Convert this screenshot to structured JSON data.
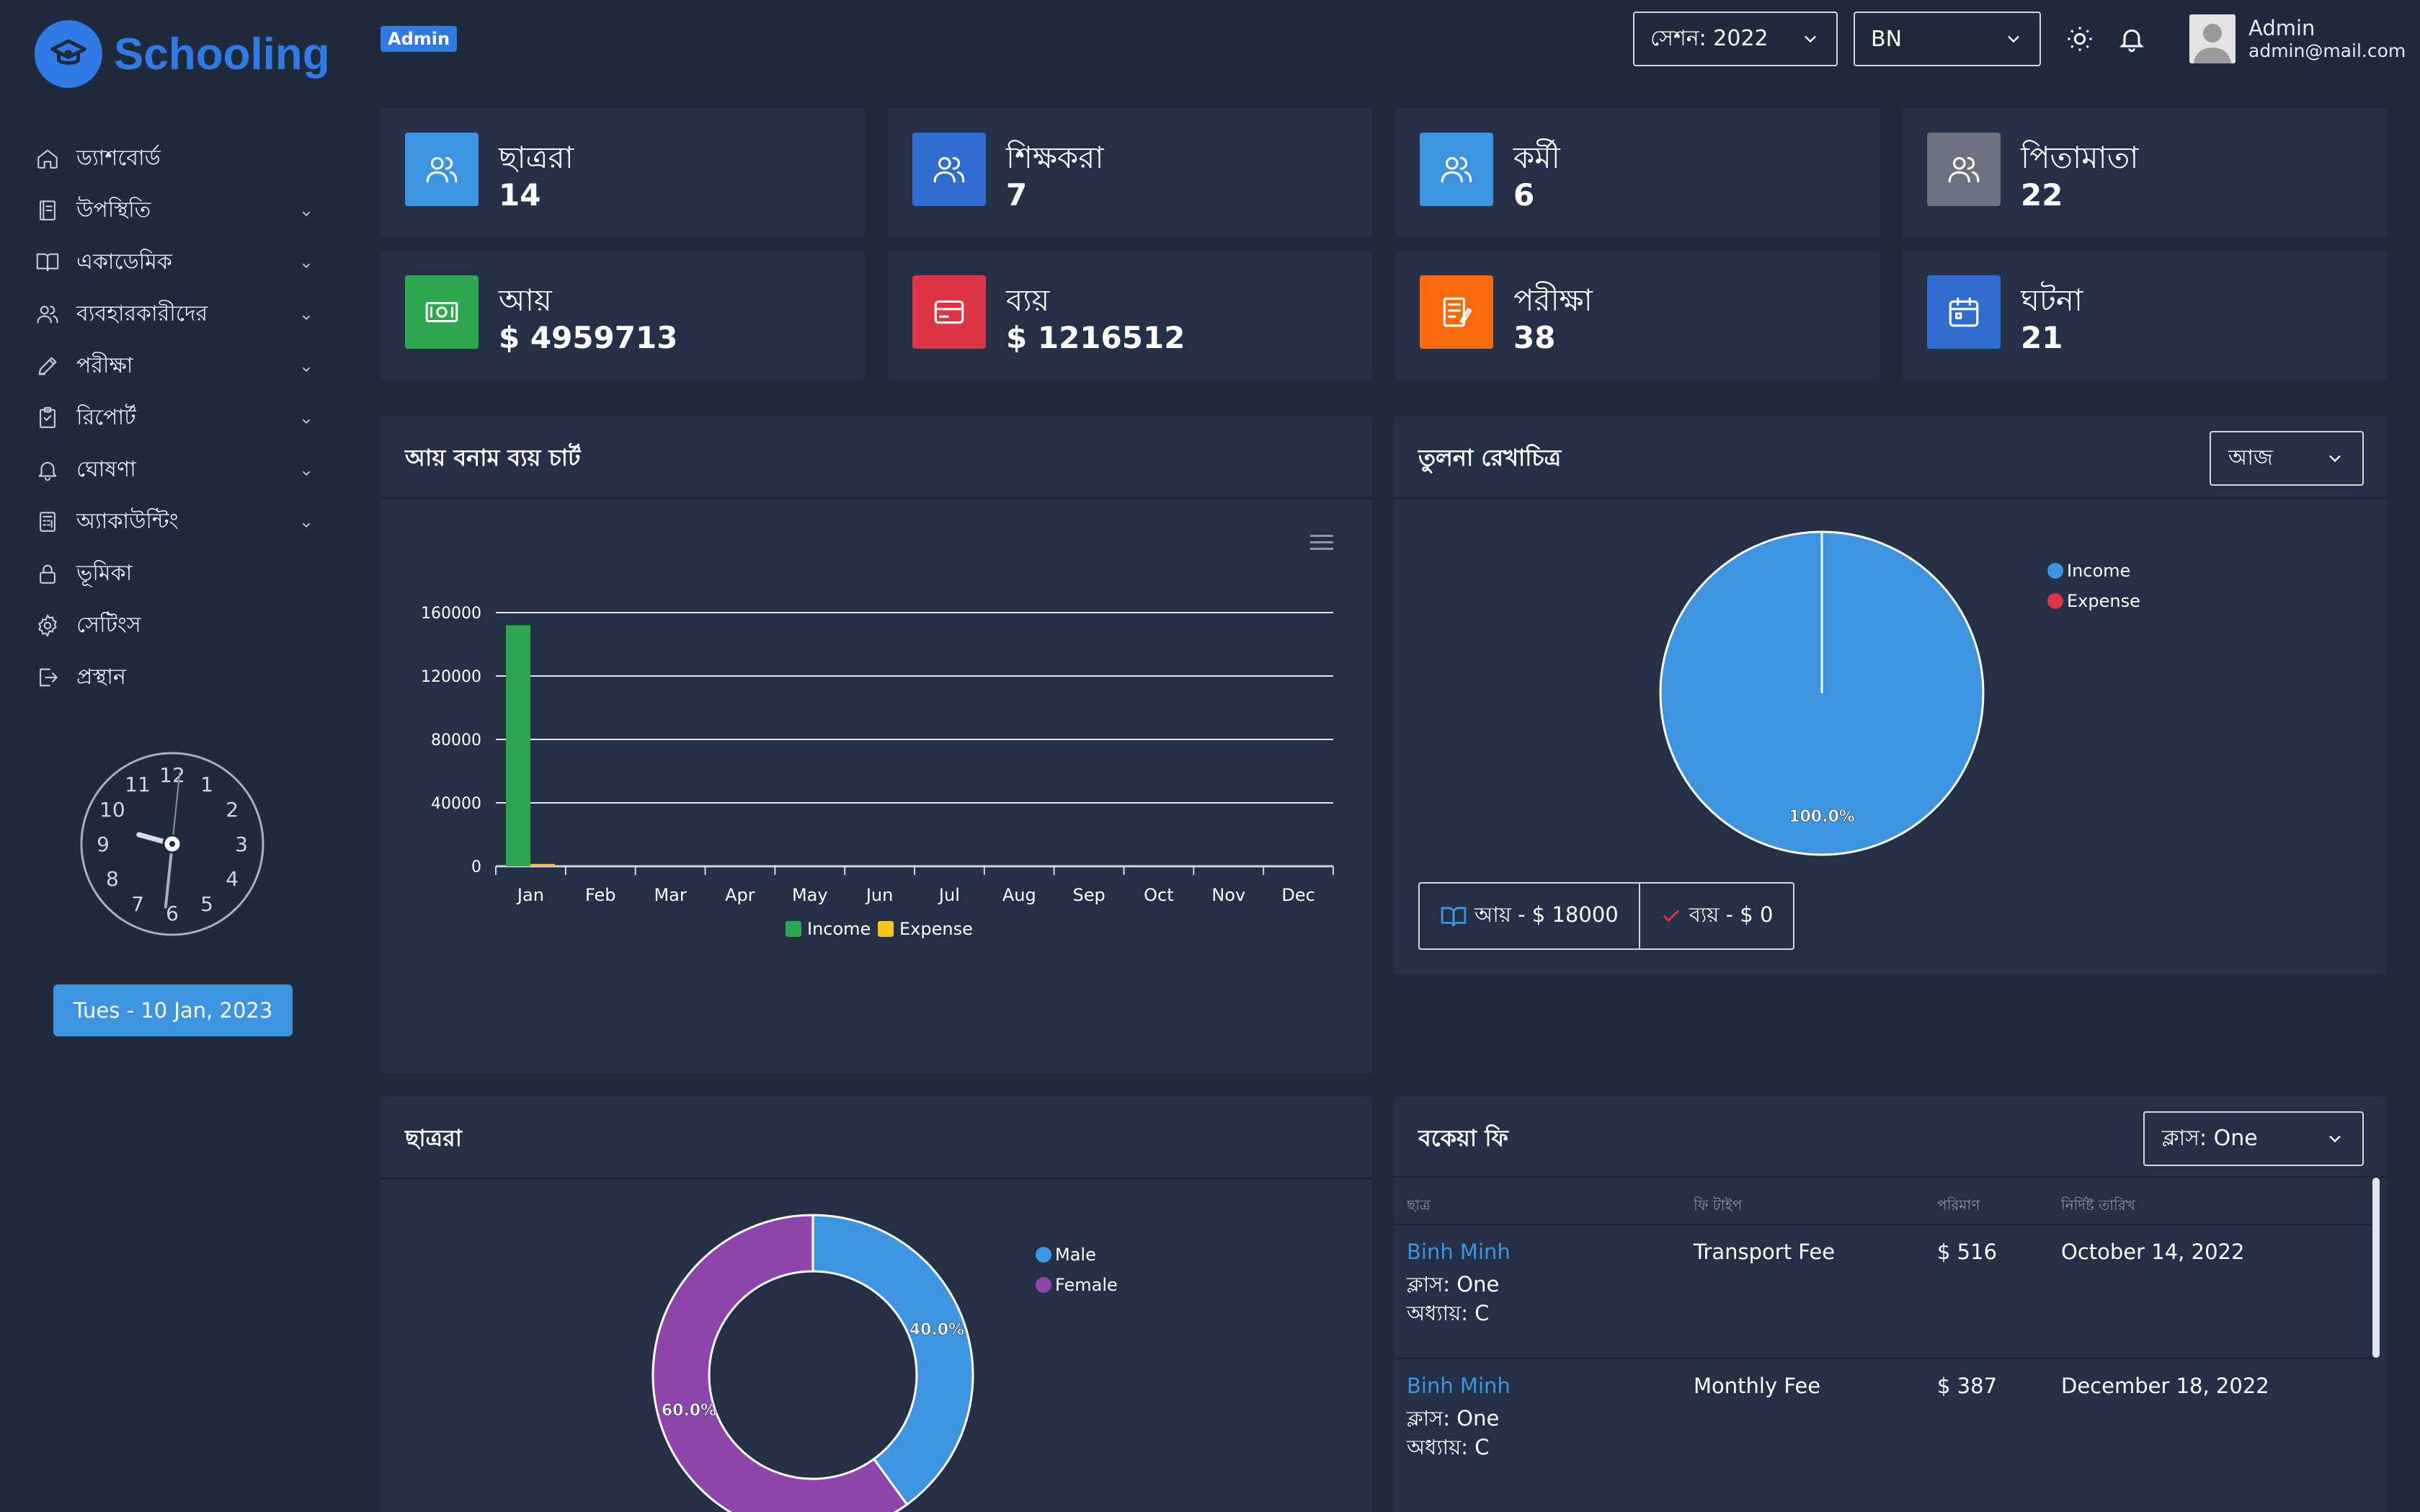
{
  "brand": {
    "name": "Schooling",
    "color": "#2f7ae5"
  },
  "topbar": {
    "role_badge": "Admin",
    "session_select": "সেশন: 2022",
    "language_select": "BN",
    "theme_icon": "sun-icon",
    "notification_icon": "bell-icon",
    "user": {
      "name": "Admin",
      "email": "admin@mail.com"
    }
  },
  "sidebar": {
    "items": [
      {
        "label": "ড্যাশবোর্ড",
        "icon": "home-icon",
        "has_children": false
      },
      {
        "label": "উপস্থিতি",
        "icon": "attendance-icon",
        "has_children": true
      },
      {
        "label": "একাডেমিক",
        "icon": "book-icon",
        "has_children": true
      },
      {
        "label": "ব্যবহারকারীদের",
        "icon": "users-icon",
        "has_children": true
      },
      {
        "label": "পরীক্ষা",
        "icon": "pencil-icon",
        "has_children": true
      },
      {
        "label": "রিপোর্ট",
        "icon": "report-icon",
        "has_children": true
      },
      {
        "label": "ঘোষণা",
        "icon": "bell-icon",
        "has_children": true
      },
      {
        "label": "অ্যাকাউন্টিং",
        "icon": "calculator-icon",
        "has_children": true
      },
      {
        "label": "ভূমিকা",
        "icon": "lock-icon",
        "has_children": false
      },
      {
        "label": "সেটিংস",
        "icon": "gear-icon",
        "has_children": false
      },
      {
        "label": "প্রস্থান",
        "icon": "logout-icon",
        "has_children": false
      }
    ],
    "clock": {
      "numbers": [
        "12",
        "1",
        "2",
        "3",
        "4",
        "5",
        "6",
        "7",
        "8",
        "9",
        "10",
        "11"
      ],
      "hour": 9,
      "minute": 31,
      "second": 1
    },
    "date_button": "Tues - 10 Jan, 2023"
  },
  "stats": [
    {
      "label": "ছাত্ররা",
      "value": "14",
      "icon": "users-icon",
      "color": "#3d95e2"
    },
    {
      "label": "শিক্ষকরা",
      "value": "7",
      "icon": "users-icon",
      "color": "#2f6ed0"
    },
    {
      "label": "কর্মী",
      "value": "6",
      "icon": "users-icon",
      "color": "#3d95e2"
    },
    {
      "label": "পিতামাতা",
      "value": "22",
      "icon": "users-icon",
      "color": "#6c737f"
    },
    {
      "label": "আয়",
      "value": "$ 4959713",
      "icon": "money-icon",
      "color": "#2ea84f"
    },
    {
      "label": "ব্যয়",
      "value": "$ 1216512",
      "icon": "card-icon",
      "color": "#dc3545"
    },
    {
      "label": "পরীক্ষা",
      "value": "38",
      "icon": "exam-icon",
      "color": "#f96a0c"
    },
    {
      "label": "ঘটনা",
      "value": "21",
      "icon": "calendar-icon",
      "color": "#2f6ed0"
    }
  ],
  "income_chart": {
    "title": "আয় বনাম ব্যয় চার্ট",
    "menu_icon": "hamburger-icon"
  },
  "comparison": {
    "title": "তুলনা রেখাচিত্র",
    "filter": "আজ",
    "income_summary": "আয় - $ 18000",
    "expense_summary": "ব্যয় - $ 0",
    "income_icon": "book-icon",
    "expense_icon": "check-icon"
  },
  "students_panel": {
    "title": "ছাত্ররা"
  },
  "fees": {
    "title": "বকেয়া ফি",
    "class_select": "ক্লাস: One",
    "headers": {
      "student": "ছাত্র",
      "fee_type": "ফি টাইপ",
      "amount": "পরিমাণ",
      "due_date": "নির্দিষ্ট তারিখ"
    },
    "rows": [
      {
        "name": "Binh Minh",
        "class": "ক্লাস: One",
        "section": "অধ্যায়: C",
        "fee_type": "Transport Fee",
        "amount": "$ 516",
        "due_date": "October 14, 2022"
      },
      {
        "name": "Binh Minh",
        "class": "ক্লাস: One",
        "section": "অধ্যায়: C",
        "fee_type": "Monthly Fee",
        "amount": "$ 387",
        "due_date": "December 18, 2022"
      }
    ]
  },
  "chart_data": [
    {
      "type": "bar",
      "categories": [
        "Jan",
        "Feb",
        "Mar",
        "Apr",
        "May",
        "Jun",
        "Jul",
        "Aug",
        "Sep",
        "Oct",
        "Nov",
        "Dec"
      ],
      "series": [
        {
          "name": "Income",
          "color": "#2ea84f",
          "values": [
            152000,
            0,
            0,
            0,
            0,
            0,
            0,
            0,
            0,
            0,
            0,
            0
          ]
        },
        {
          "name": "Expense",
          "color": "#f5c518",
          "values": [
            1500,
            0,
            0,
            0,
            0,
            0,
            0,
            0,
            0,
            0,
            0,
            0
          ]
        }
      ],
      "yticks": [
        "0",
        "40000",
        "80000",
        "120000",
        "160000"
      ],
      "ylim": [
        0,
        160000
      ],
      "grid": true,
      "legend": "bottom"
    },
    {
      "type": "pie",
      "labels": [
        "Income",
        "Expense"
      ],
      "values": [
        100.0,
        0.0
      ],
      "slice_labels": [
        "100.0%"
      ],
      "colors": [
        "#3d95e2",
        "#dc3545"
      ],
      "legend": "right"
    },
    {
      "type": "pie",
      "labels": [
        "Male",
        "Female"
      ],
      "values": [
        40.0,
        60.0
      ],
      "slice_labels": [
        "40.0%",
        "60.0%"
      ],
      "colors": [
        "#3d95e2",
        "#8e44ad"
      ],
      "legend": "right"
    }
  ]
}
